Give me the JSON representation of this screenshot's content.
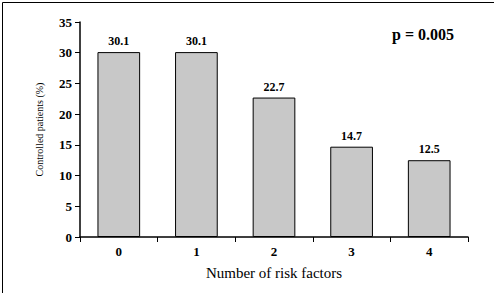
{
  "chart_data": {
    "type": "bar",
    "categories": [
      "0",
      "1",
      "2",
      "3",
      "4"
    ],
    "values": [
      30.1,
      30.1,
      22.7,
      14.7,
      12.5
    ],
    "color": "#c8c8c8",
    "x_label": "Number of risk factors",
    "y_label": "Controlled patients (%)",
    "annotation": "p = 0.005",
    "ylim": [
      0,
      35
    ],
    "yticks": [
      0,
      5,
      10,
      15,
      20,
      25,
      30,
      35
    ],
    "grid": false,
    "data_labels": true
  }
}
